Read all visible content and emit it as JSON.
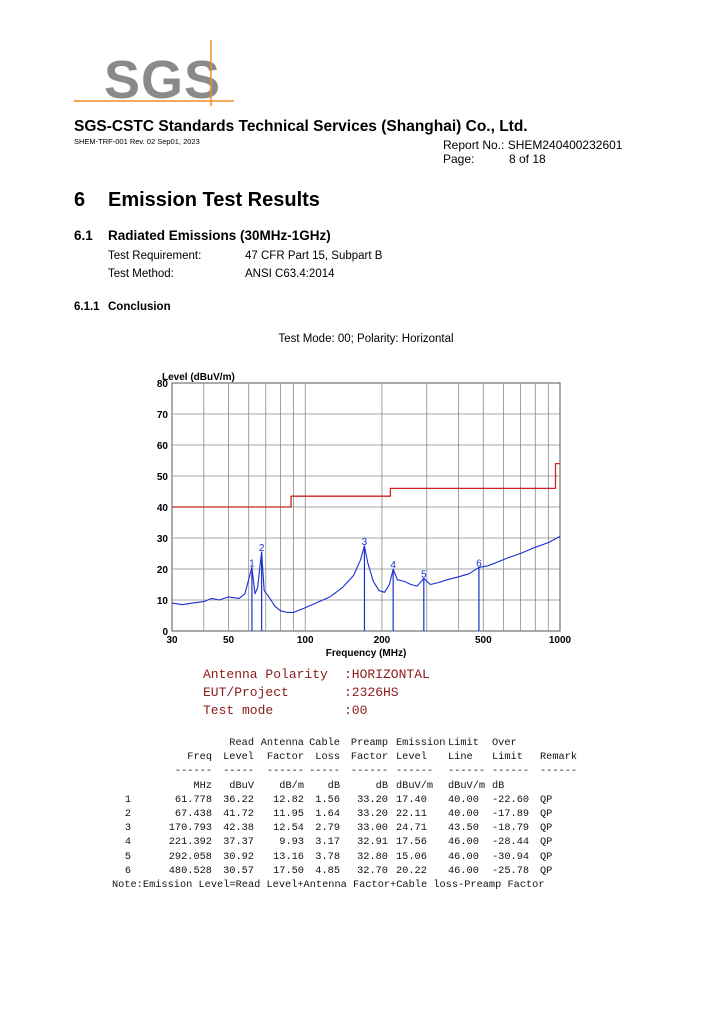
{
  "header": {
    "logo_text": "SGS",
    "company": "SGS-CSTC Standards Technical Services (Shanghai) Co., Ltd.",
    "form_no": "SHEM-TRF-001 Rev. 02 Sep01, 2023",
    "report_no_label": "Report No.:",
    "report_no": "SHEM240400232601",
    "page_label": "Page:",
    "page_value": "8 of 18"
  },
  "section": {
    "number": "6",
    "title": "Emission Test Results"
  },
  "subsection": {
    "number": "6.1",
    "title": "Radiated Emissions (30MHz-1GHz)"
  },
  "test_requirement": {
    "label": "Test Requirement:",
    "value": "47 CFR Part 15, Subpart B"
  },
  "test_method": {
    "label": "Test Method:",
    "value": "ANSI C63.4:2014"
  },
  "subsubsection": {
    "number": "6.1.1",
    "title": "Conclusion"
  },
  "test_mode_caption": "Test Mode: 00; Polarity: Horizontal",
  "chart_data": {
    "type": "line",
    "title": "",
    "ylabel": "Level (dBuV/m)",
    "xlabel": "Frequency (MHz)",
    "x_scale": "log",
    "xlim": [
      30,
      1000
    ],
    "ylim": [
      0,
      80
    ],
    "x_ticks": [
      30,
      50,
      100,
      200,
      500,
      1000
    ],
    "y_ticks": [
      0,
      10,
      20,
      30,
      40,
      50,
      60,
      70,
      80
    ],
    "grid": true,
    "series": [
      {
        "color": "#cc2222",
        "x": [
          30,
          88,
          88,
          216,
          216,
          960,
          960,
          1000
        ],
        "y": [
          40,
          40,
          43.5,
          43.5,
          46,
          46,
          54,
          54
        ]
      },
      {
        "color": "#1a2fd0",
        "x": [
          30,
          33,
          36,
          40,
          43,
          46,
          50,
          55,
          58,
          61.778,
          63.5,
          65,
          67.438,
          69,
          72,
          76,
          80,
          85,
          90,
          100,
          110,
          125,
          140,
          155,
          165,
          170.793,
          176,
          185,
          195,
          205,
          214,
          221.392,
          230,
          245,
          260,
          275,
          292.058,
          310,
          330,
          360,
          400,
          440,
          480.528,
          520,
          560,
          620,
          700,
          800,
          900,
          1000
        ],
        "y": [
          9,
          8.5,
          9,
          9.5,
          10.5,
          10,
          11,
          10.5,
          12,
          20.5,
          12,
          14,
          25.5,
          13,
          11,
          8,
          6.5,
          6,
          6,
          7.5,
          9,
          11,
          14,
          18,
          23,
          27.5,
          22,
          16,
          13,
          12.5,
          15,
          20,
          16.5,
          16,
          15,
          14.5,
          17,
          15,
          15.5,
          16.5,
          17.5,
          18.5,
          20.5,
          21,
          22,
          23.5,
          25,
          27,
          28.5,
          30.5
        ]
      },
      {
        "color": "#1a2fd0",
        "type": "markers",
        "x": [
          61.778,
          67.438,
          170.793,
          221.392,
          292.058,
          480.528
        ],
        "y": [
          20.5,
          25.5,
          27.5,
          20,
          17,
          20.5
        ],
        "labels": [
          "1",
          "2",
          "3",
          "4",
          "5",
          "6"
        ]
      }
    ]
  },
  "antenna_info": [
    {
      "label": "Antenna Polarity",
      "value": ":HORIZONTAL"
    },
    {
      "label": "EUT/Project",
      "value": ":2326HS"
    },
    {
      "label": "Test mode",
      "value": ":00"
    }
  ],
  "table": {
    "head1": [
      "",
      "",
      "Read",
      "Antenna",
      "Cable",
      "Preamp",
      "Emission",
      "Limit",
      "Over",
      ""
    ],
    "head2": [
      "",
      "Freq",
      "Level",
      "Factor",
      "Loss",
      "Factor",
      "Level",
      "Line",
      "Limit",
      "Remark"
    ],
    "dashes": [
      "",
      "------",
      "-----",
      "------",
      "-----",
      "------",
      "------",
      "------",
      "------",
      "------"
    ],
    "units": [
      "",
      "MHz",
      "dBuV",
      "dB/m",
      "dB",
      "dB",
      "dBuV/m",
      "dBuV/m",
      "dB",
      ""
    ],
    "rows": [
      [
        "1",
        "61.778",
        "36.22",
        "12.82",
        "1.56",
        "33.20",
        "17.40",
        "40.00",
        "-22.60",
        "QP"
      ],
      [
        "2",
        "67.438",
        "41.72",
        "11.95",
        "1.64",
        "33.20",
        "22.11",
        "40.00",
        "-17.89",
        "QP"
      ],
      [
        "3",
        "170.793",
        "42.38",
        "12.54",
        "2.79",
        "33.00",
        "24.71",
        "43.50",
        "-18.79",
        "QP"
      ],
      [
        "4",
        "221.392",
        "37.37",
        "9.93",
        "3.17",
        "32.91",
        "17.56",
        "46.00",
        "-28.44",
        "QP"
      ],
      [
        "5",
        "292.058",
        "30.92",
        "13.16",
        "3.78",
        "32.80",
        "15.06",
        "46.00",
        "-30.94",
        "QP"
      ],
      [
        "6",
        "480.528",
        "30.57",
        "17.50",
        "4.85",
        "32.70",
        "20.22",
        "46.00",
        "-25.78",
        "QP"
      ]
    ],
    "note": "Note:Emission Level=Read Level+Antenna Factor+Cable loss-Preamp Factor"
  }
}
